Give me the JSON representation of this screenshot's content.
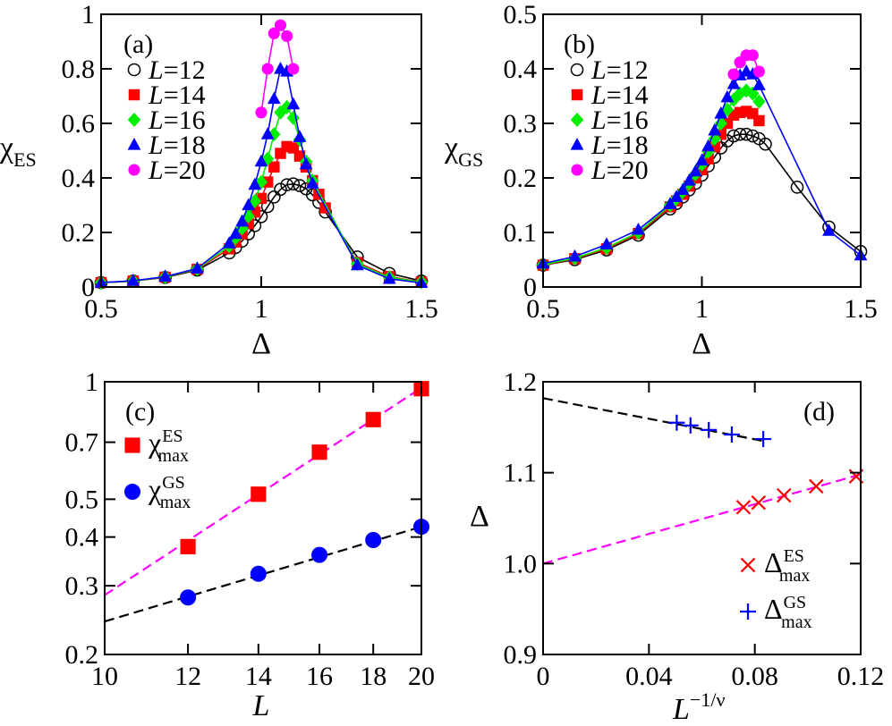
{
  "chart_data": [
    {
      "id": "a",
      "panel_label": "(a)",
      "type": "line",
      "xlabel": "Δ",
      "ylabel": "χ",
      "ylabel_sub": "ES",
      "xlim": [
        0.5,
        1.5
      ],
      "ylim": [
        0,
        1
      ],
      "xticks": [
        0.5,
        1,
        1.5
      ],
      "xtick_labels": [
        "0.5",
        "1",
        "1.5"
      ],
      "yticks": [
        0,
        0.2,
        0.4,
        0.6,
        0.8,
        1
      ],
      "ytick_labels": [
        "0",
        "0.2",
        "0.4",
        "0.6",
        "0.8",
        "1"
      ],
      "legend": [
        "L=12",
        "L=14",
        "L=16",
        "L=18",
        "L=20"
      ],
      "series": [
        {
          "name": "L=12",
          "color": "#000000",
          "marker": "circle-open",
          "x": [
            0.5,
            0.6,
            0.7,
            0.8,
            0.9,
            0.92,
            0.94,
            0.96,
            0.98,
            1.0,
            1.02,
            1.04,
            1.06,
            1.08,
            1.1,
            1.12,
            1.14,
            1.16,
            1.18,
            1.2,
            1.3,
            1.4,
            1.5
          ],
          "y": [
            0.016,
            0.022,
            0.035,
            0.062,
            0.125,
            0.145,
            0.168,
            0.195,
            0.225,
            0.258,
            0.295,
            0.33,
            0.358,
            0.375,
            0.378,
            0.372,
            0.36,
            0.338,
            0.31,
            0.275,
            0.11,
            0.05,
            0.022
          ]
        },
        {
          "name": "L=14",
          "color": "#ff0000",
          "marker": "square",
          "x": [
            0.5,
            0.6,
            0.7,
            0.8,
            0.9,
            0.92,
            0.94,
            0.96,
            0.98,
            1.0,
            1.02,
            1.04,
            1.06,
            1.08,
            1.1,
            1.12,
            1.14,
            1.16,
            1.18,
            1.2,
            1.3,
            1.4,
            1.5
          ],
          "y": [
            0.016,
            0.022,
            0.036,
            0.065,
            0.14,
            0.165,
            0.195,
            0.232,
            0.275,
            0.325,
            0.385,
            0.44,
            0.49,
            0.515,
            0.51,
            0.48,
            0.44,
            0.39,
            0.34,
            0.29,
            0.09,
            0.038,
            0.018
          ]
        },
        {
          "name": "L=16",
          "color": "#00ee00",
          "marker": "diamond",
          "x": [
            0.5,
            0.6,
            0.7,
            0.8,
            0.9,
            0.92,
            0.94,
            0.96,
            0.98,
            1.0,
            1.02,
            1.04,
            1.06,
            1.08,
            1.1,
            1.12,
            1.14,
            1.16,
            1.3,
            1.4,
            1.5
          ],
          "y": [
            0.016,
            0.022,
            0.037,
            0.066,
            0.15,
            0.18,
            0.215,
            0.26,
            0.315,
            0.385,
            0.47,
            0.56,
            0.64,
            0.66,
            0.62,
            0.54,
            0.46,
            0.39,
            0.085,
            0.035,
            0.018
          ]
        },
        {
          "name": "L=18",
          "color": "#0000ff",
          "marker": "triangle",
          "x": [
            0.5,
            0.6,
            0.7,
            0.8,
            0.9,
            0.92,
            0.94,
            0.96,
            0.98,
            1.0,
            1.02,
            1.04,
            1.06,
            1.08,
            1.1,
            1.12,
            1.14,
            1.16,
            1.3,
            1.4,
            1.5
          ],
          "y": [
            0.016,
            0.023,
            0.038,
            0.068,
            0.16,
            0.195,
            0.24,
            0.3,
            0.375,
            0.46,
            0.56,
            0.69,
            0.8,
            0.79,
            0.67,
            0.55,
            0.45,
            0.38,
            0.08,
            0.03,
            0.015
          ]
        },
        {
          "name": "L=20",
          "color": "#ff00ff",
          "marker": "circle",
          "x": [
            1.0,
            1.02,
            1.04,
            1.06,
            1.08,
            1.1
          ],
          "y": [
            0.64,
            0.8,
            0.93,
            0.96,
            0.92,
            0.8
          ]
        }
      ]
    },
    {
      "id": "b",
      "panel_label": "(b)",
      "type": "line",
      "xlabel": "Δ",
      "ylabel": "χ",
      "ylabel_sub": "GS",
      "xlim": [
        0.5,
        1.5
      ],
      "ylim": [
        0,
        0.5
      ],
      "xticks": [
        0.5,
        1,
        1.5
      ],
      "xtick_labels": [
        "0.5",
        "1",
        "1.5"
      ],
      "yticks": [
        0,
        0.1,
        0.2,
        0.3,
        0.4,
        0.5
      ],
      "ytick_labels": [
        "0",
        "0.1",
        "0.2",
        "0.3",
        "0.4",
        "0.5"
      ],
      "legend": [
        "L=12",
        "L=14",
        "L=16",
        "L=18",
        "L=20"
      ],
      "series": [
        {
          "name": "L=12",
          "color": "#000000",
          "marker": "circle-open",
          "x": [
            0.5,
            0.6,
            0.7,
            0.8,
            0.9,
            0.92,
            0.94,
            0.96,
            0.98,
            1.0,
            1.02,
            1.04,
            1.06,
            1.08,
            1.1,
            1.12,
            1.14,
            1.16,
            1.18,
            1.2,
            1.3,
            1.4,
            1.5
          ],
          "y": [
            0.04,
            0.05,
            0.068,
            0.095,
            0.143,
            0.153,
            0.165,
            0.178,
            0.19,
            0.205,
            0.222,
            0.238,
            0.255,
            0.268,
            0.277,
            0.28,
            0.28,
            0.277,
            0.272,
            0.262,
            0.183,
            0.11,
            0.065
          ]
        },
        {
          "name": "L=14",
          "color": "#ff0000",
          "marker": "square",
          "x": [
            0.5,
            0.6,
            0.7,
            0.8,
            0.9,
            0.92,
            0.94,
            0.96,
            0.98,
            1.0,
            1.02,
            1.04,
            1.06,
            1.08,
            1.1,
            1.12,
            1.14,
            1.16,
            1.18
          ],
          "y": [
            0.04,
            0.052,
            0.07,
            0.098,
            0.147,
            0.158,
            0.17,
            0.185,
            0.2,
            0.215,
            0.235,
            0.257,
            0.28,
            0.3,
            0.315,
            0.32,
            0.322,
            0.318,
            0.305
          ]
        },
        {
          "name": "L=16",
          "color": "#00ee00",
          "marker": "diamond",
          "x": [
            0.5,
            0.6,
            0.7,
            0.8,
            0.9,
            0.92,
            0.94,
            0.96,
            0.98,
            1.0,
            1.02,
            1.04,
            1.06,
            1.08,
            1.1,
            1.12,
            1.14,
            1.16,
            1.18
          ],
          "y": [
            0.041,
            0.053,
            0.072,
            0.1,
            0.15,
            0.162,
            0.175,
            0.19,
            0.207,
            0.225,
            0.248,
            0.272,
            0.3,
            0.325,
            0.343,
            0.355,
            0.36,
            0.355,
            0.34
          ]
        },
        {
          "name": "L=18",
          "color": "#0000ff",
          "marker": "triangle",
          "x": [
            0.5,
            0.6,
            0.7,
            0.8,
            0.9,
            0.92,
            0.94,
            0.96,
            0.98,
            1.0,
            1.02,
            1.04,
            1.06,
            1.08,
            1.1,
            1.12,
            1.14,
            1.16,
            1.18,
            1.4,
            1.5
          ],
          "y": [
            0.043,
            0.056,
            0.078,
            0.105,
            0.152,
            0.165,
            0.178,
            0.195,
            0.212,
            0.232,
            0.258,
            0.287,
            0.318,
            0.348,
            0.372,
            0.388,
            0.395,
            0.39,
            0.37,
            0.103,
            0.058
          ]
        },
        {
          "name": "L=20",
          "color": "#ff00ff",
          "marker": "circle",
          "x": [
            1.1,
            1.12,
            1.14,
            1.16,
            1.18
          ],
          "y": [
            0.39,
            0.412,
            0.425,
            0.425,
            0.395
          ]
        }
      ]
    },
    {
      "id": "c",
      "panel_label": "(c)",
      "type": "scatter",
      "xscale": "log",
      "yscale": "log",
      "xlabel": "L",
      "xlim": [
        10,
        20
      ],
      "ylim": [
        0.2,
        1
      ],
      "xticks": [
        10,
        12,
        14,
        16,
        18,
        20
      ],
      "xtick_labels": [
        "10",
        "12",
        "14",
        "16",
        "18",
        "20"
      ],
      "yticks": [
        0.2,
        0.3,
        0.4,
        0.5,
        0.7,
        1
      ],
      "ytick_labels": [
        "0.2",
        "0.3",
        "0.4",
        "0.5",
        "0.7",
        "1"
      ],
      "legend": [
        "χ max ES",
        "χ max GS"
      ],
      "series": [
        {
          "name": "χ max ES",
          "symbol": "χ",
          "sub": "max",
          "sup": "ES",
          "color": "#ff0000",
          "marker": "square",
          "x": [
            12,
            14,
            16,
            18,
            20
          ],
          "y": [
            0.378,
            0.515,
            0.66,
            0.8,
            0.96
          ],
          "fit": {
            "x": [
              10,
              20
            ],
            "y": [
              0.284,
              0.965
            ],
            "color": "#ff00ff"
          }
        },
        {
          "name": "χ max GS",
          "symbol": "χ",
          "sub": "max",
          "sup": "GS",
          "color": "#0000ff",
          "marker": "circle",
          "x": [
            12,
            14,
            16,
            18,
            20
          ],
          "y": [
            0.28,
            0.322,
            0.36,
            0.393,
            0.425
          ],
          "fit": {
            "x": [
              10,
              20
            ],
            "y": [
              0.243,
              0.425
            ],
            "color": "#000000"
          }
        }
      ]
    },
    {
      "id": "d",
      "panel_label": "(d)",
      "type": "scatter",
      "xlabel": "L",
      "xlabel_sup": "−1/ν",
      "ylabel": "Δ",
      "xlim": [
        0,
        0.12
      ],
      "ylim": [
        0.9,
        1.2
      ],
      "xticks": [
        0,
        0.04,
        0.08,
        0.12
      ],
      "xtick_labels": [
        "0",
        "0.04",
        "0.08",
        "0.12"
      ],
      "yticks": [
        0.9,
        1.0,
        1.1,
        1.2
      ],
      "ytick_labels": [
        "0.9",
        "1.0",
        "1.1",
        "1.2"
      ],
      "legend": [
        "Δ max ES",
        "Δ max GS"
      ],
      "series": [
        {
          "name": "Δ max ES",
          "symbol": "Δ",
          "sub": "max",
          "sup": "ES",
          "color": "#ff0000",
          "marker": "x",
          "x": [
            0.0757,
            0.0814,
            0.091,
            0.1032,
            0.1183
          ],
          "y": [
            1.062,
            1.067,
            1.075,
            1.085,
            1.096
          ],
          "fit": {
            "x": [
              0,
              0.12
            ],
            "y": [
              1.0,
              1.098
            ],
            "color": "#ff00ff"
          }
        },
        {
          "name": "Δ max GS",
          "symbol": "Δ",
          "sub": "max",
          "sup": "GS",
          "color": "#0000ff",
          "marker": "plus",
          "x": [
            0.0505,
            0.0557,
            0.0626,
            0.0713,
            0.0832
          ],
          "y": [
            1.155,
            1.152,
            1.147,
            1.142,
            1.137
          ],
          "fit": {
            "x": [
              0,
              0.083
            ],
            "y": [
              1.182,
              1.135
            ],
            "color": "#000000"
          }
        }
      ]
    }
  ]
}
